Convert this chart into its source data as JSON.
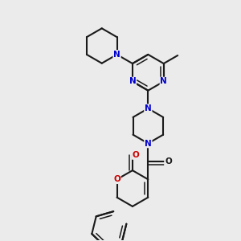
{
  "bg": "#ebebeb",
  "bc": "#1a1a1a",
  "nc": "#0000cc",
  "oc": "#cc0000",
  "lw": 1.5,
  "lw_inner": 1.1,
  "fs": 7.5,
  "fig_w": 3.0,
  "fig_h": 3.0,
  "dpi": 100,
  "xlim": [
    0.0,
    1.0
  ],
  "ylim": [
    0.0,
    1.0
  ],
  "BL": 0.082
}
